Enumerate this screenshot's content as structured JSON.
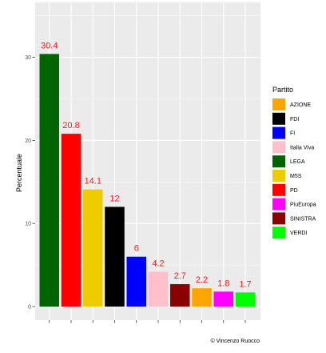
{
  "chart_data": {
    "type": "bar",
    "ylabel": "Percentuale",
    "xlabel": "",
    "ylim": [
      0,
      36.5
    ],
    "yticks": [
      0,
      10,
      20,
      30
    ],
    "grid": true,
    "legend_position": "right",
    "legend_title": "Partito",
    "legend": [
      {
        "name": "AZIONE",
        "color": "#ffa500"
      },
      {
        "name": "FDI",
        "color": "#000000"
      },
      {
        "name": "FI",
        "color": "#0000ff"
      },
      {
        "name": "Italia Viva",
        "color": "#ffc0cb"
      },
      {
        "name": "LEGA",
        "color": "#006400"
      },
      {
        "name": "M5S",
        "color": "#eecc00"
      },
      {
        "name": "PD",
        "color": "#ff0000"
      },
      {
        "name": "PiuEuropa",
        "color": "#ff00ff"
      },
      {
        "name": "SINISTRA",
        "color": "#8b0000"
      },
      {
        "name": "VERDI",
        "color": "#00ff00"
      }
    ],
    "bars": [
      {
        "party": "LEGA",
        "value": 30.4,
        "label": "30.4"
      },
      {
        "party": "PD",
        "value": 20.8,
        "label": "20.8"
      },
      {
        "party": "M5S",
        "value": 14.1,
        "label": "14.1"
      },
      {
        "party": "FDI",
        "value": 12,
        "label": "12"
      },
      {
        "party": "FI",
        "value": 6,
        "label": "6"
      },
      {
        "party": "Italia Viva",
        "value": 4.2,
        "label": "4.2"
      },
      {
        "party": "SINISTRA",
        "value": 2.7,
        "label": "2.7"
      },
      {
        "party": "AZIONE",
        "value": 2.2,
        "label": "2.2"
      },
      {
        "party": "PiuEuropa",
        "value": 1.8,
        "label": "1.8"
      },
      {
        "party": "VERDI",
        "value": 1.7,
        "label": "1.7"
      }
    ]
  },
  "caption": "© Vincenzo Ruocco"
}
